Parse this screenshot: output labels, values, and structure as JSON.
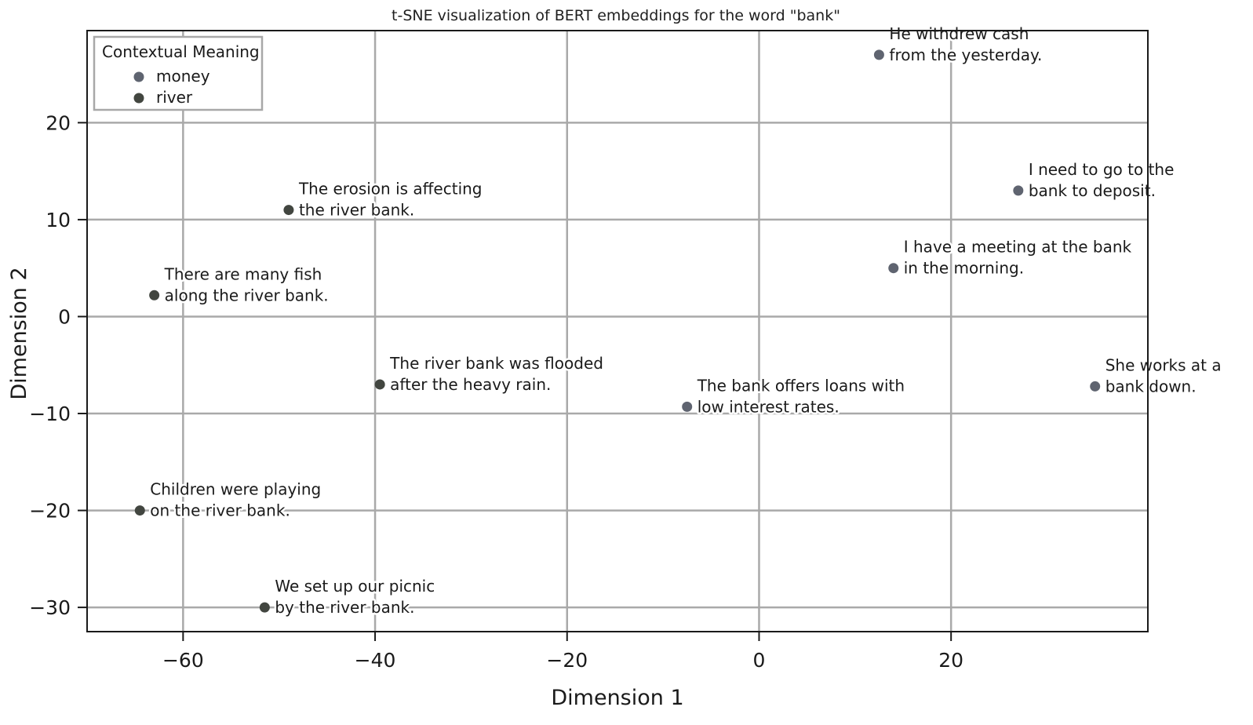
{
  "chart_data": {
    "type": "scatter",
    "title": "t-SNE visualization of BERT embeddings for the word \"bank\"",
    "xlabel": "Dimension 1",
    "ylabel": "Dimension 2",
    "xlim": [
      -70,
      40.5
    ],
    "ylim": [
      -32.5,
      29.5
    ],
    "xticks": [
      -60,
      -40,
      -20,
      0,
      20
    ],
    "yticks": [
      20,
      10,
      0,
      -10,
      -20,
      -30
    ],
    "xtick_labels": [
      "−60",
      "−40",
      "−20",
      "0",
      "20"
    ],
    "ytick_labels": [
      "20",
      "10",
      "0",
      "−10",
      "−20",
      "−30"
    ],
    "grid": true,
    "legend": {
      "title": "Contextual Meaning",
      "placement": "top-left",
      "entries": [
        {
          "name": "money",
          "color": "#5f6470"
        },
        {
          "name": "river",
          "color": "#424640"
        }
      ]
    },
    "series": [
      {
        "name": "money",
        "color": "#5f6470",
        "points": [
          {
            "x": 12.5,
            "y": 27,
            "label_lines": [
              "He withdrew cash",
              "from the yesterday."
            ]
          },
          {
            "x": 27,
            "y": 13,
            "label_lines": [
              "I need to go to the",
              "bank to deposit."
            ]
          },
          {
            "x": 14,
            "y": 5,
            "label_lines": [
              "I have a meeting at the bank",
              "in the morning."
            ]
          },
          {
            "x": 35,
            "y": -7.2,
            "label_lines": [
              "She works at a",
              "bank down."
            ]
          },
          {
            "x": -7.5,
            "y": -9.3,
            "label_lines": [
              "The bank offers loans with",
              "low interest rates."
            ]
          }
        ]
      },
      {
        "name": "river",
        "color": "#424640",
        "points": [
          {
            "x": -49,
            "y": 11,
            "label_lines": [
              "The erosion is affecting",
              "the river bank."
            ]
          },
          {
            "x": -63,
            "y": 2.2,
            "label_lines": [
              "There are many fish",
              "along the river bank."
            ]
          },
          {
            "x": -39.5,
            "y": -7,
            "label_lines": [
              "The river bank was flooded",
              "after the heavy rain."
            ]
          },
          {
            "x": -64.5,
            "y": -20,
            "label_lines": [
              "Children were playing",
              "on the river bank."
            ]
          },
          {
            "x": -51.5,
            "y": -30,
            "label_lines": [
              "We set up our picnic",
              "by the river bank."
            ]
          }
        ]
      }
    ]
  }
}
